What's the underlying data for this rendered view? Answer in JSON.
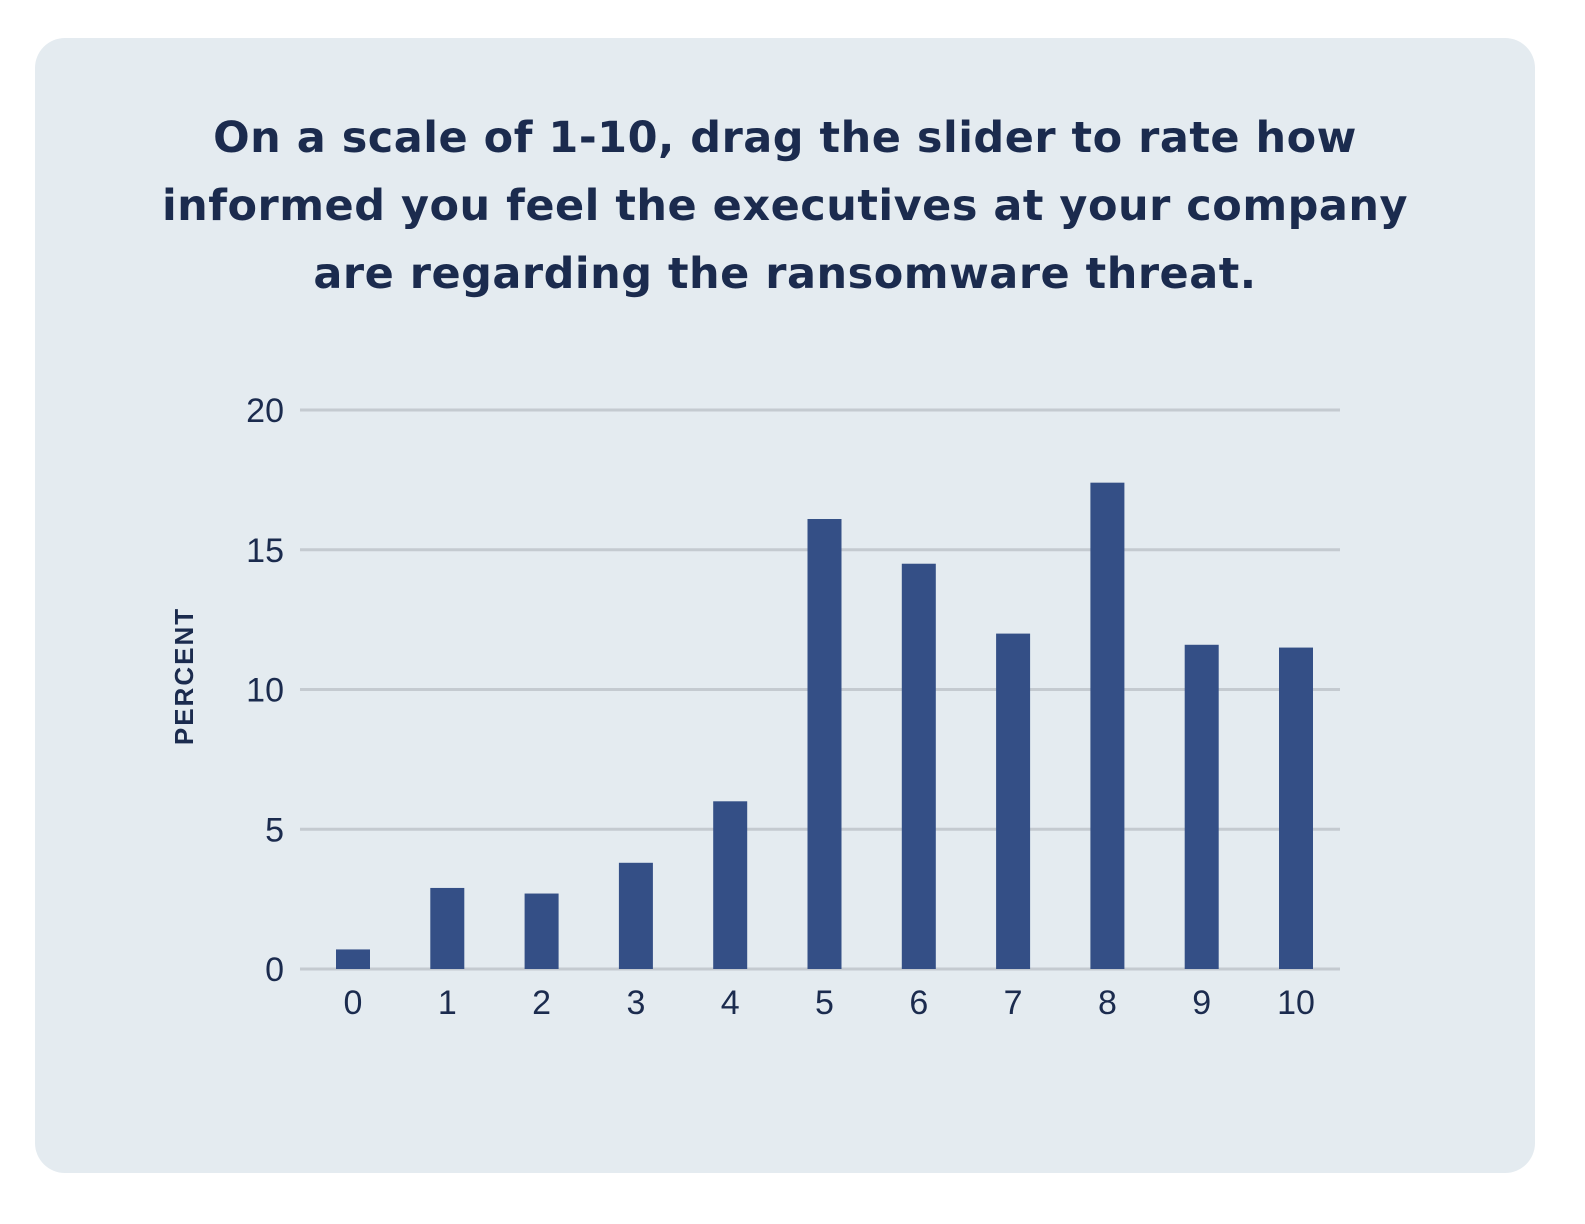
{
  "title": "On a scale of 1-10, drag the slider to rate how informed you feel the executives at your company are regarding the ransomware threat.",
  "colors": {
    "card_background": "#e4ebf0",
    "bar": "#344f86",
    "gridline": "#c4cad0",
    "text": "#1b2b4e"
  },
  "chart_data": {
    "type": "bar",
    "title": "On a scale of 1-10, drag the slider to rate how informed you feel the executives at your company are regarding the ransomware threat.",
    "xlabel": "",
    "ylabel": "PERCENT",
    "categories": [
      "0",
      "1",
      "2",
      "3",
      "4",
      "5",
      "6",
      "7",
      "8",
      "9",
      "10"
    ],
    "values": [
      0.7,
      2.9,
      2.7,
      3.8,
      6.0,
      16.1,
      14.5,
      12.0,
      17.4,
      11.6,
      11.5
    ],
    "ylim": [
      0,
      20
    ],
    "yticks": [
      "0",
      "5",
      "10",
      "15",
      "20"
    ],
    "grid": true,
    "legend": "none"
  }
}
